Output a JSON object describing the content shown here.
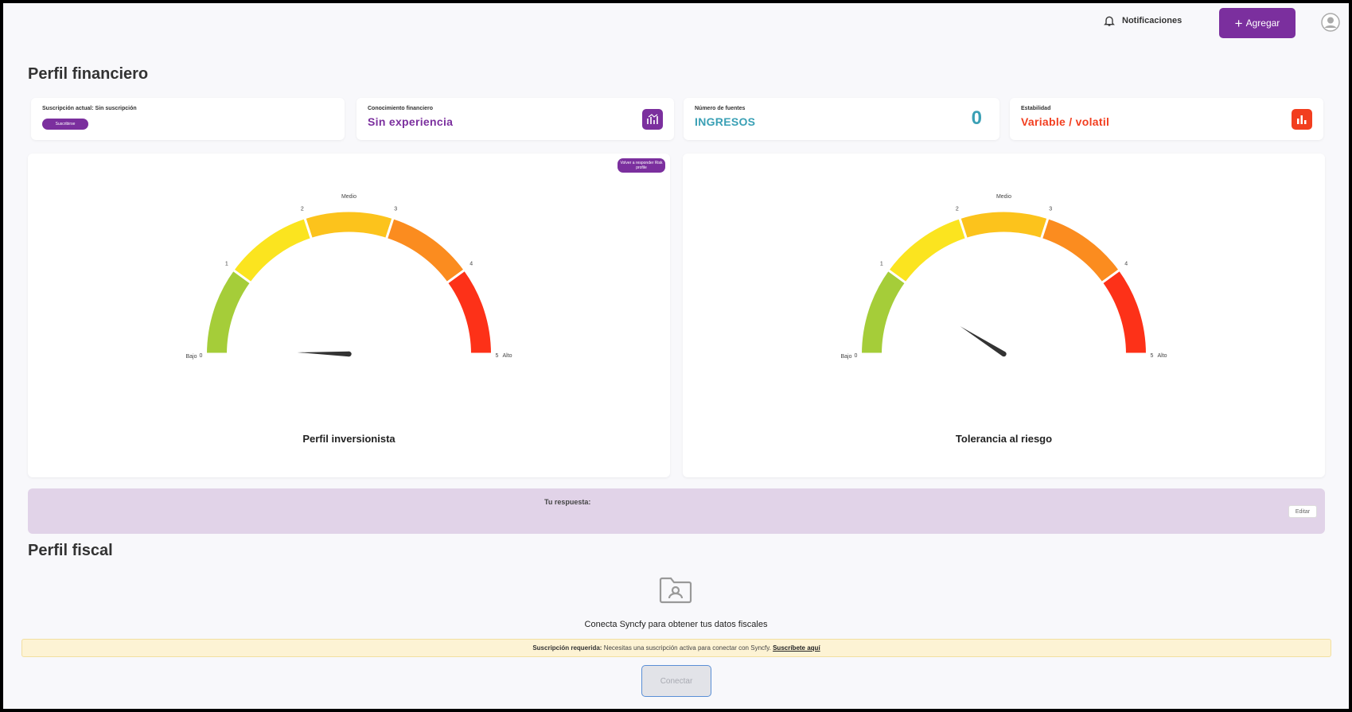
{
  "topbar": {
    "notifications_label": "Notificaciones",
    "add_label": "Agregar",
    "icons": {
      "notifications": "bell-icon",
      "add": "plus-icon",
      "user": "user-avatar-icon"
    }
  },
  "financial": {
    "title": "Perfil financiero",
    "subscription": {
      "label": "Suscripción actual:",
      "value": "Sin suscripción",
      "button_label": "Suscribirse"
    },
    "knowledge": {
      "label": "Conocimiento financiero",
      "value": "Sin experiencia",
      "color": "#7b2f9e",
      "icon": "chart-growth-icon"
    },
    "sources": {
      "label": "Número de fuentes",
      "value": "INGRESOS",
      "count": "0",
      "color": "#3aa0b5"
    },
    "stability": {
      "label": "Estabilidad",
      "value": "Variable / volatil",
      "color": "#f23e1f",
      "icon": "bar-chart-icon"
    }
  },
  "gauges": {
    "retry_label": "Volver a responder Risk profile",
    "ticks": [
      "0",
      "1",
      "2",
      "3",
      "4",
      "5"
    ],
    "low_label": "Bajo",
    "mid_label": "Medio",
    "high_label": "Alto",
    "segment_colors": [
      "#a5cd39",
      "#fbe41f",
      "#fcc31c",
      "#fb8c1f",
      "#fd3118"
    ],
    "investor": {
      "title": "Perfil inversionista",
      "value": 0.05
    },
    "risk": {
      "title": "Tolerancia al riesgo",
      "value": 0.9
    }
  },
  "answer": {
    "label": "Tu respuesta:",
    "edit_label": "Editar"
  },
  "fiscal": {
    "title": "Perfil fiscal",
    "icon": "folder-user-icon",
    "connect_text": "Conecta Syncfy para obtener tus datos fiscales",
    "warning_bold": "Suscripción requerida:",
    "warning_text": " Necesitas una suscripción activa para conectar con Syncfy. ",
    "warning_link": "Suscríbete aquí",
    "connect_button": "Conectar"
  }
}
